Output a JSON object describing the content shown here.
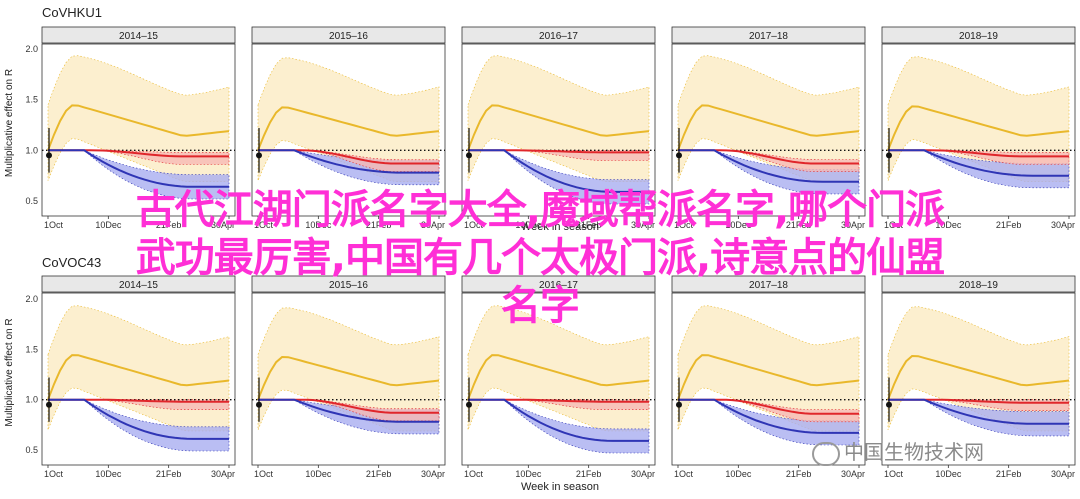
{
  "overlay": {
    "line1": "古代江湖门派名字大全,魔域帮派名字,哪个门派",
    "line2": "武功最厉害,中国有几个太极门派,诗意点的仙盟",
    "line3": "名字"
  },
  "watermark": "中国生物技术网",
  "colors": {
    "seasonal_line": "#e9b82b",
    "seasonal_band": "#fcefcf",
    "blue_line": "#2f35b5",
    "blue_band": "#a9aef0",
    "red_line": "#e0262b",
    "red_band": "#f6b9b4",
    "strip_bg": "#e8e8e8"
  },
  "chart_data": [
    {
      "type": "line",
      "title": "CoVHKU1",
      "ylabel": "Multiplicative effect on R",
      "xlabel": "Week in season",
      "ylim": [
        0.5,
        2.0
      ],
      "yticks": [
        "0.5",
        "1.0",
        "1.5",
        "2.0"
      ],
      "xticks": [
        "1Oct",
        "10Dec",
        "21Feb",
        "30Apr"
      ],
      "panels": [
        {
          "season": "2014–15",
          "seasonal_peak": 1.45,
          "red_end": 0.94,
          "blue_end": 0.64
        },
        {
          "season": "2015–16",
          "seasonal_peak": 1.43,
          "red_end": 0.87,
          "blue_end": 0.78
        },
        {
          "season": "2016–17",
          "seasonal_peak": 1.45,
          "red_end": 0.98,
          "blue_end": 0.59
        },
        {
          "season": "2017–18",
          "seasonal_peak": 1.45,
          "red_end": 0.87,
          "blue_end": 0.69
        },
        {
          "season": "2018–19",
          "seasonal_peak": 1.44,
          "red_end": 0.94,
          "blue_end": 0.75
        }
      ]
    },
    {
      "type": "line",
      "title": "CoVOC43",
      "ylabel": "Multiplicative effect on R",
      "xlabel": "Week in season",
      "ylim": [
        0.5,
        2.0
      ],
      "yticks": [
        "0.5",
        "1.0",
        "1.5",
        "2.0"
      ],
      "xticks": [
        "1Oct",
        "10Dec",
        "21Feb",
        "30Apr"
      ],
      "panels": [
        {
          "season": "2014–15",
          "seasonal_peak": 1.45,
          "red_end": 0.98,
          "blue_end": 0.61
        },
        {
          "season": "2015–16",
          "seasonal_peak": 1.43,
          "red_end": 0.87,
          "blue_end": 0.78
        },
        {
          "season": "2016–17",
          "seasonal_peak": 1.45,
          "red_end": 0.98,
          "blue_end": 0.59
        },
        {
          "season": "2017–18",
          "seasonal_peak": 1.45,
          "red_end": 0.86,
          "blue_end": 0.67
        },
        {
          "season": "2018–19",
          "seasonal_peak": 1.44,
          "red_end": 0.97,
          "blue_end": 0.76
        }
      ]
    }
  ]
}
